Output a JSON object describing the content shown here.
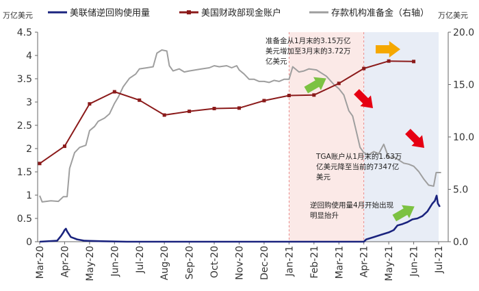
{
  "chart_data": {
    "type": "line",
    "left_unit": "万亿美元",
    "right_unit": "万亿美元",
    "left_axis": {
      "min": 0,
      "max": 4.5,
      "ticks": [
        "0",
        "0.5",
        "1",
        "1.5",
        "2",
        "2.5",
        "3",
        "3.5",
        "4",
        "4.5"
      ]
    },
    "right_axis": {
      "min": 0,
      "max": 20,
      "ticks": [
        "0.0",
        "5.0",
        "10.0",
        "15.0",
        "20.0"
      ]
    },
    "x_labels": [
      "Mar-20",
      "Apr-20",
      "May-20",
      "Jun-20",
      "Jul-20",
      "Aug-20",
      "Sep-20",
      "Oct-20",
      "Nov-20",
      "Dec-20",
      "Jan-21",
      "Feb-21",
      "Mar-21",
      "Apr-21",
      "May-21",
      "Jun-21",
      "Jul-21"
    ],
    "legend": [
      {
        "key": "rrp",
        "label": "美联储逆回购使用量",
        "color": "#1a237e"
      },
      {
        "key": "tga",
        "label": "美国财政部现金账户",
        "color": "#8b1a1a"
      },
      {
        "key": "reserves",
        "label": "存款机构准备金（右轴）",
        "color": "#9e9e9e"
      }
    ],
    "shaded_regions": [
      {
        "from": 10.0,
        "to": 13.0,
        "color": "#fbe9e7"
      },
      {
        "from": 13.0,
        "to": 16.0,
        "color": "#e8edf6"
      }
    ],
    "series": {
      "tga": {
        "axis": "left",
        "color": "#8b1a1a",
        "points": [
          [
            0,
            1.68
          ],
          [
            1,
            2.05
          ],
          [
            2,
            2.96
          ],
          [
            3,
            3.22
          ],
          [
            4,
            3.04
          ],
          [
            5,
            2.72
          ],
          [
            6,
            2.8
          ],
          [
            7,
            2.86
          ],
          [
            8,
            2.87
          ],
          [
            9,
            3.03
          ],
          [
            10,
            3.14
          ],
          [
            11,
            3.15
          ],
          [
            12,
            3.4
          ],
          [
            13,
            3.72
          ],
          [
            14,
            3.88
          ],
          [
            15,
            3.87
          ]
        ]
      },
      "reserves": {
        "axis": "right",
        "color": "#9e9e9e",
        "points": [
          [
            0,
            4.4
          ],
          [
            0.1,
            3.8
          ],
          [
            0.45,
            3.9
          ],
          [
            0.75,
            3.85
          ],
          [
            0.95,
            4.3
          ],
          [
            1.1,
            4.3
          ],
          [
            1.2,
            7.0
          ],
          [
            1.4,
            8.5
          ],
          [
            1.6,
            9.0
          ],
          [
            1.85,
            9.2
          ],
          [
            2.0,
            10.6
          ],
          [
            2.2,
            11.0
          ],
          [
            2.35,
            11.5
          ],
          [
            2.6,
            11.8
          ],
          [
            2.8,
            12.2
          ],
          [
            3.0,
            13.2
          ],
          [
            3.15,
            13.8
          ],
          [
            3.35,
            14.8
          ],
          [
            3.6,
            15.6
          ],
          [
            3.85,
            16.0
          ],
          [
            4.0,
            16.5
          ],
          [
            4.3,
            16.6
          ],
          [
            4.55,
            16.7
          ],
          [
            4.7,
            18.0
          ],
          [
            4.9,
            18.3
          ],
          [
            5.1,
            18.2
          ],
          [
            5.2,
            16.8
          ],
          [
            5.35,
            16.3
          ],
          [
            5.6,
            16.5
          ],
          [
            5.8,
            16.2
          ],
          [
            6.0,
            16.3
          ],
          [
            6.25,
            16.4
          ],
          [
            6.5,
            16.5
          ],
          [
            6.8,
            16.6
          ],
          [
            7.0,
            16.8
          ],
          [
            7.2,
            16.7
          ],
          [
            7.5,
            16.8
          ],
          [
            7.7,
            16.6
          ],
          [
            7.9,
            16.8
          ],
          [
            8.0,
            16.4
          ],
          [
            8.2,
            16.0
          ],
          [
            8.4,
            15.5
          ],
          [
            8.6,
            15.5
          ],
          [
            8.8,
            15.3
          ],
          [
            9.0,
            15.3
          ],
          [
            9.2,
            15.2
          ],
          [
            9.4,
            15.4
          ],
          [
            9.6,
            15.3
          ],
          [
            9.8,
            15.5
          ],
          [
            10.0,
            15.5
          ],
          [
            10.15,
            16.7
          ],
          [
            10.4,
            16.2
          ],
          [
            10.6,
            16.3
          ],
          [
            10.8,
            16.5
          ],
          [
            11.1,
            16.4
          ],
          [
            11.3,
            16.1
          ],
          [
            11.5,
            15.8
          ],
          [
            11.8,
            15.0
          ],
          [
            12.0,
            14.6
          ],
          [
            12.2,
            14.0
          ],
          [
            12.4,
            12.5
          ],
          [
            12.55,
            12.0
          ],
          [
            12.7,
            10.5
          ],
          [
            12.85,
            9.0
          ],
          [
            13.0,
            8.5
          ],
          [
            13.2,
            8.3
          ],
          [
            13.4,
            8.6
          ],
          [
            13.6,
            8.4
          ],
          [
            13.8,
            9.3
          ],
          [
            14.0,
            8.0
          ],
          [
            14.2,
            8.1
          ],
          [
            14.4,
            7.8
          ],
          [
            14.6,
            7.5
          ],
          [
            14.8,
            7.4
          ],
          [
            15.0,
            7.2
          ],
          [
            15.2,
            6.7
          ],
          [
            15.4,
            6.0
          ],
          [
            15.6,
            5.4
          ],
          [
            15.8,
            5.3
          ],
          [
            15.9,
            6.6
          ],
          [
            16.1,
            6.6
          ]
        ]
      },
      "rrp": {
        "axis": "left",
        "color": "#1a237e",
        "points": [
          [
            0,
            0.0
          ],
          [
            0.7,
            0.02
          ],
          [
            0.85,
            0.12
          ],
          [
            0.95,
            0.2
          ],
          [
            1.0,
            0.25
          ],
          [
            1.05,
            0.28
          ],
          [
            1.1,
            0.22
          ],
          [
            1.25,
            0.1
          ],
          [
            1.5,
            0.05
          ],
          [
            1.8,
            0.02
          ],
          [
            2.5,
            0.01
          ],
          [
            3.5,
            0.0
          ],
          [
            13.0,
            0.0
          ],
          [
            13.1,
            0.05
          ],
          [
            13.4,
            0.1
          ],
          [
            13.7,
            0.15
          ],
          [
            14.0,
            0.2
          ],
          [
            14.2,
            0.25
          ],
          [
            14.35,
            0.35
          ],
          [
            14.55,
            0.38
          ],
          [
            14.75,
            0.42
          ],
          [
            14.95,
            0.48
          ],
          [
            15.15,
            0.5
          ],
          [
            15.35,
            0.55
          ],
          [
            15.55,
            0.65
          ],
          [
            15.75,
            0.82
          ],
          [
            15.85,
            0.88
          ],
          [
            15.92,
            0.99
          ],
          [
            15.97,
            0.82
          ],
          [
            16.05,
            0.75
          ]
        ]
      }
    },
    "annotations": [
      {
        "lines": [
          "准备金从1月末的3.15万亿",
          "美元增加至3月末的3.72万",
          "亿美元"
        ]
      },
      {
        "lines": [
          "TGA账户从1月末的1.63万",
          "亿美元降至当前的7347亿",
          "美元"
        ]
      },
      {
        "lines": [
          "逆回购使用量4月开始出现",
          "明显抬升"
        ]
      }
    ],
    "arrows": [
      {
        "name": "orange-arrow-right-icon",
        "color": "#f5a800"
      },
      {
        "name": "green-arrow-up-icon",
        "color": "#7cc242"
      },
      {
        "name": "red-arrow-down-icon",
        "color": "#e60012"
      },
      {
        "name": "red-arrow-down-icon-2",
        "color": "#e60012"
      },
      {
        "name": "green-arrow-up-icon-2",
        "color": "#7cc242"
      }
    ]
  }
}
